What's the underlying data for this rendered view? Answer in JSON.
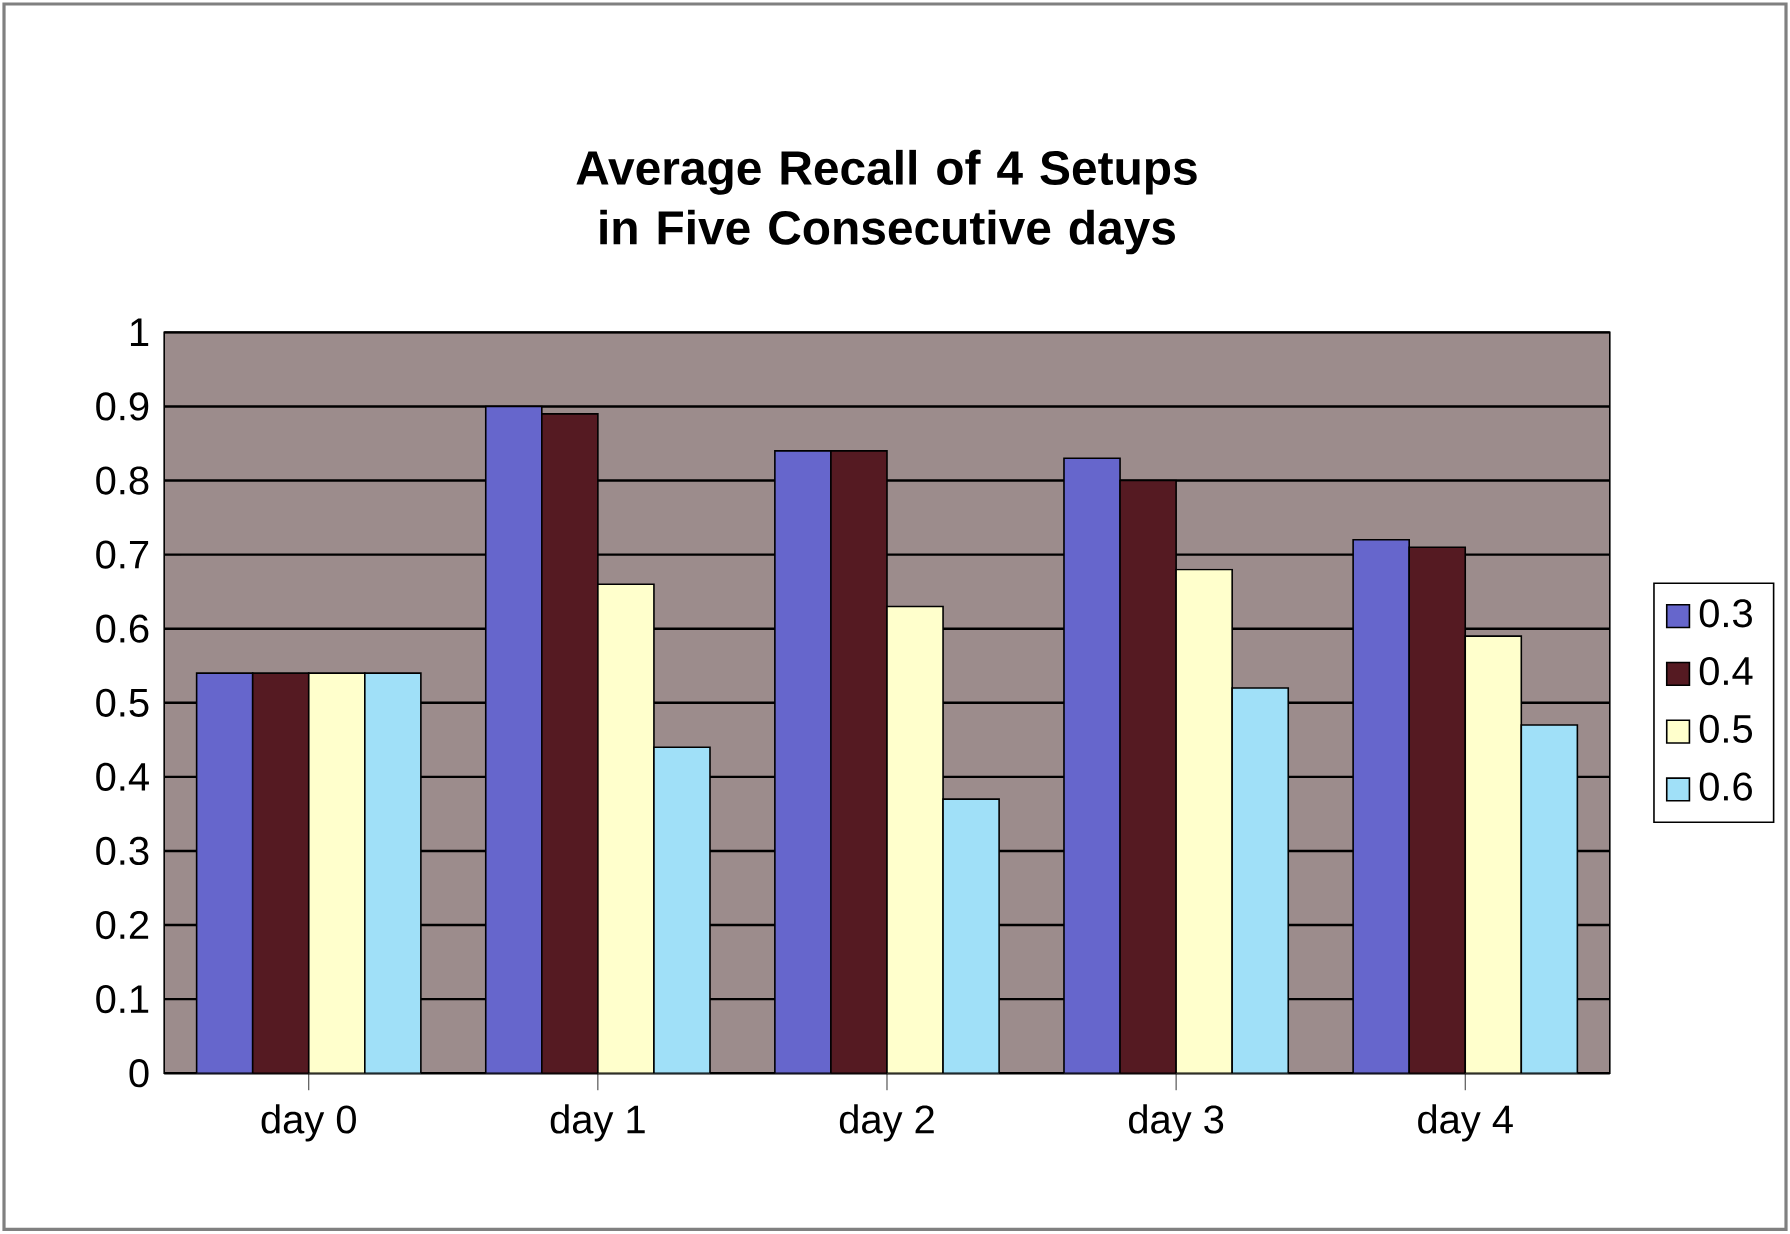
{
  "chart_data": {
    "type": "bar",
    "title": "Average Recall of 4 Setups in Five Consecutive days",
    "categories": [
      "day 0",
      "day 1",
      "day 2",
      "day 3",
      "day 4"
    ],
    "series": [
      {
        "name": "0.3",
        "color": "#6666cc",
        "values": [
          0.54,
          0.9,
          0.84,
          0.83,
          0.72
        ]
      },
      {
        "name": "0.4",
        "color": "#551a22",
        "values": [
          0.54,
          0.89,
          0.84,
          0.8,
          0.71
        ]
      },
      {
        "name": "0.5",
        "color": "#ffffcc",
        "values": [
          0.54,
          0.66,
          0.63,
          0.68,
          0.59
        ]
      },
      {
        "name": "0.6",
        "color": "#a0e0f8",
        "values": [
          0.54,
          0.44,
          0.37,
          0.52,
          0.47
        ]
      }
    ],
    "ylim": [
      0,
      1
    ],
    "yticks": [
      0,
      0.1,
      0.2,
      0.3,
      0.4,
      0.5,
      0.6,
      0.7,
      0.8,
      0.9,
      1
    ],
    "grid": "y",
    "legend": "right"
  }
}
